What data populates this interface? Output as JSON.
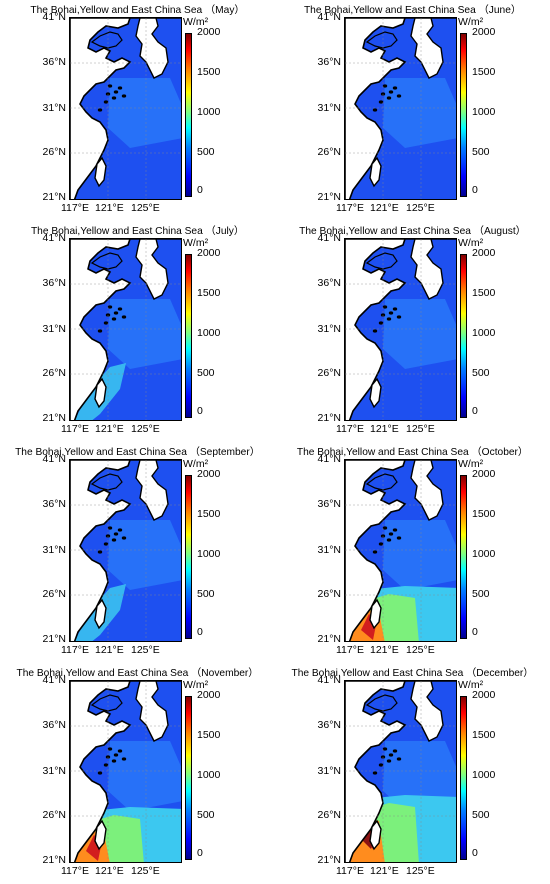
{
  "colorbar": {
    "unit": "W/m²",
    "ticks": [
      "2000",
      "1500",
      "1000",
      "500",
      "0"
    ],
    "range": [
      0,
      2000
    ]
  },
  "axes": {
    "lat_ticks": [
      "41°N",
      "36°N",
      "31°N",
      "26°N",
      "21°N"
    ],
    "lon_ticks": [
      "117°E",
      "121°E",
      "125°E"
    ]
  },
  "colors": {
    "land": "#ffffff",
    "coast": "#000000",
    "low": "#1e50f0",
    "mid": "#2f8cff",
    "cyan": "#3cc8f0",
    "green": "#7cf07c",
    "orange": "#ff8c1e",
    "red": "#d21e1e",
    "darkred": "#8c1414"
  },
  "panels": [
    {
      "title": "The Bohai,Yellow and East China Sea （May）",
      "hotspot": "none"
    },
    {
      "title": "The Bohai,Yellow and East China Sea （June）",
      "hotspot": "none"
    },
    {
      "title": "The Bohai,Yellow and East China Sea （July）",
      "hotspot": "light"
    },
    {
      "title": "The Bohai,Yellow and East China Sea （August）",
      "hotspot": "none"
    },
    {
      "title": "The Bohai,Yellow and East China Sea （September）",
      "hotspot": "light"
    },
    {
      "title": "The Bohai,Yellow and East China Sea （October）",
      "hotspot": "strong"
    },
    {
      "title": "The Bohai,Yellow and East China Sea （November）",
      "hotspot": "strong"
    },
    {
      "title": "The Bohai,Yellow and East China Sea （December）",
      "hotspot": "strongest"
    }
  ]
}
